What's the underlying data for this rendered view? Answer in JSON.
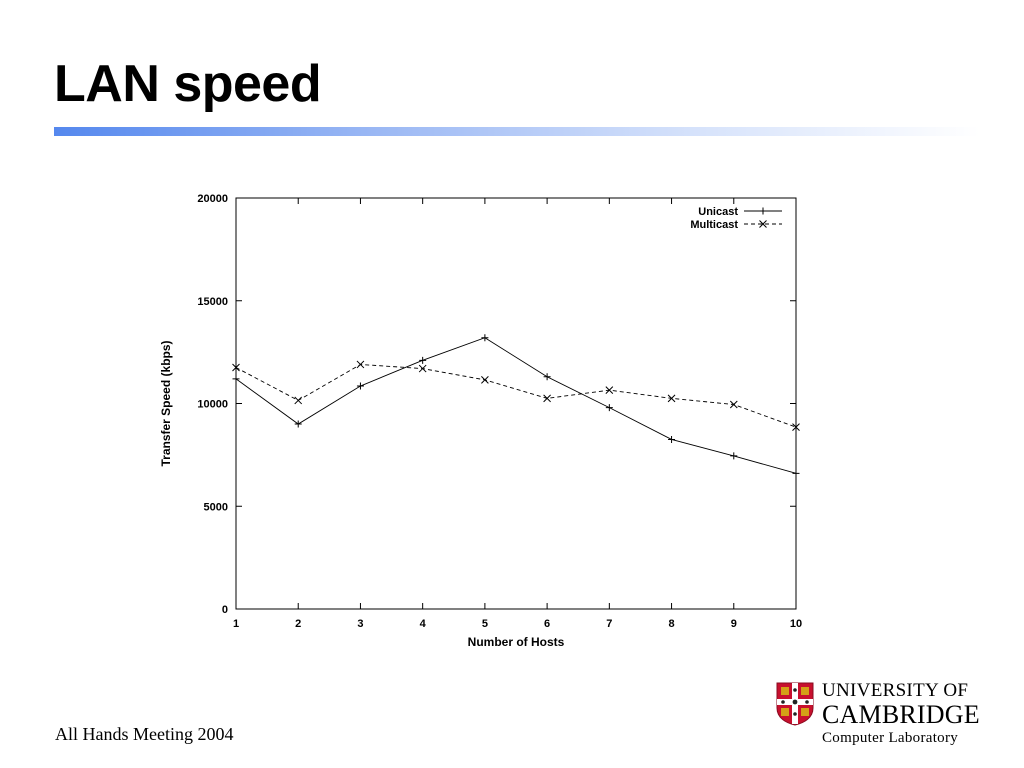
{
  "slide": {
    "title": "LAN speed",
    "footer": "All Hands Meeting 2004",
    "colors": {
      "title_rule_start": "#5588ee",
      "title_rule_end": "#ffffff"
    }
  },
  "logo": {
    "line1": "UNIVERSITY OF",
    "line2": "CAMBRIDGE",
    "line3": "Computer Laboratory",
    "crest_icon": "cambridge-crest-icon",
    "colors": {
      "shield": "#c8102e",
      "cross": "#ffffff",
      "lions": "#d4a017"
    }
  },
  "chart_data": {
    "type": "line",
    "title": "",
    "xlabel": "Number of Hosts",
    "ylabel": "Transfer Speed (kbps)",
    "x": [
      1,
      2,
      3,
      4,
      5,
      6,
      7,
      8,
      9,
      10
    ],
    "xlim": [
      1,
      10
    ],
    "ylim": [
      0,
      20000
    ],
    "yticks": [
      0,
      5000,
      10000,
      15000,
      20000
    ],
    "grid": false,
    "legend_position": "top-right",
    "series": [
      {
        "name": "Unicast",
        "style": "solid",
        "marker": "plus",
        "values": [
          11200,
          9000,
          10850,
          12100,
          13200,
          11300,
          9800,
          8250,
          7450,
          6600
        ]
      },
      {
        "name": "Multicast",
        "style": "dashed",
        "marker": "cross",
        "values": [
          11750,
          10150,
          11900,
          11700,
          11150,
          10250,
          10650,
          10250,
          9950,
          8850
        ]
      }
    ]
  }
}
